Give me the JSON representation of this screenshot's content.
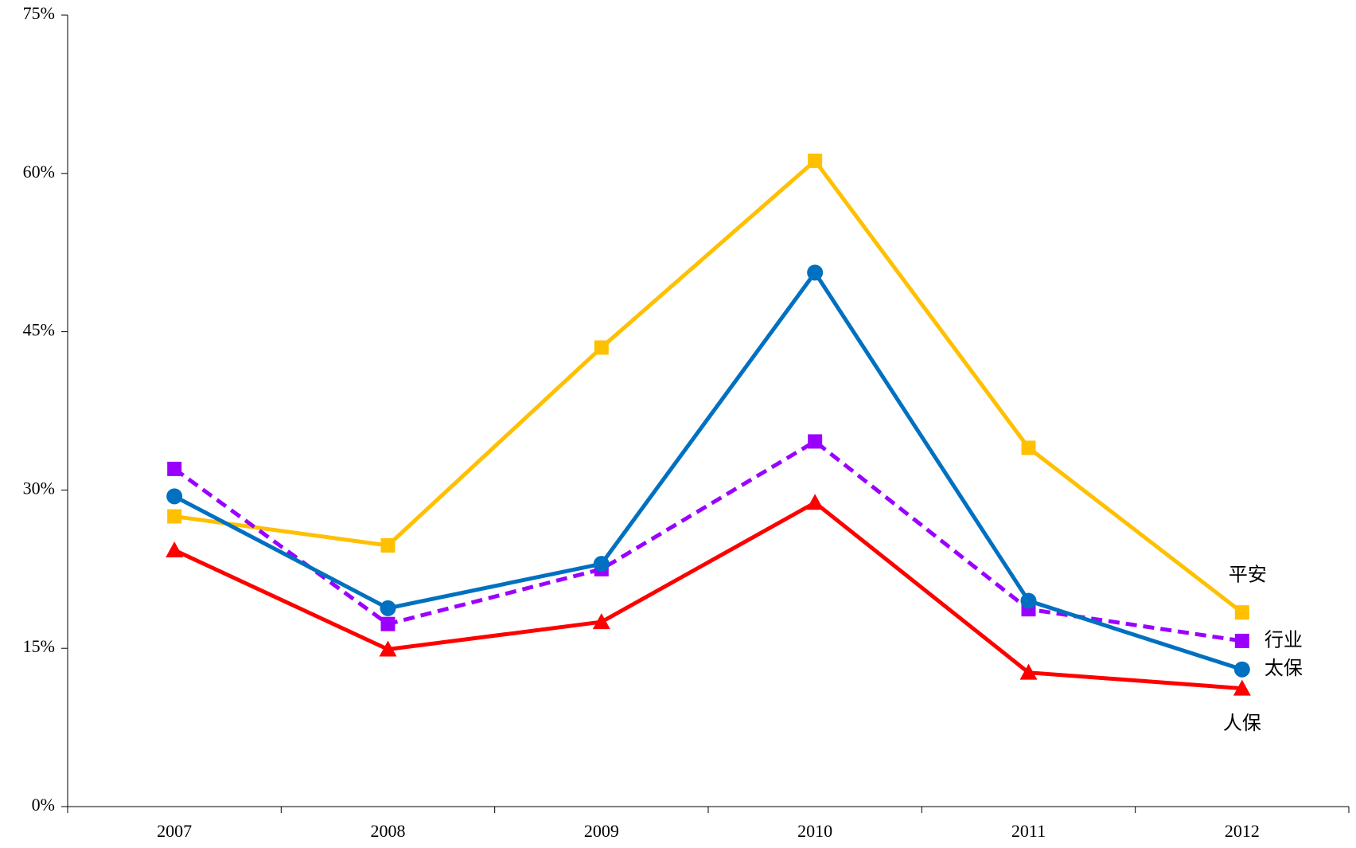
{
  "chart_data": {
    "type": "line",
    "categories": [
      "2007",
      "2008",
      "2009",
      "2010",
      "2011",
      "2012"
    ],
    "series": [
      {
        "name": "平安",
        "color": "#ffc000",
        "marker": "square",
        "dashed": false,
        "values": [
          27.5,
          24.75,
          43.5,
          61.2,
          34.0,
          18.4
        ]
      },
      {
        "name": "行业",
        "color": "#9b00ff",
        "marker": "square",
        "dashed": true,
        "values": [
          32.0,
          17.3,
          22.5,
          34.6,
          18.7,
          15.7
        ]
      },
      {
        "name": "太保",
        "color": "#0070c0",
        "marker": "circle",
        "dashed": false,
        "values": [
          29.4,
          18.8,
          23.0,
          50.6,
          19.5,
          13.0
        ]
      },
      {
        "name": "人保",
        "color": "#ff0000",
        "marker": "triangle",
        "dashed": false,
        "values": [
          24.3,
          14.9,
          17.5,
          28.8,
          12.7,
          11.2
        ]
      }
    ],
    "ylim": [
      0,
      75
    ],
    "yticks": [
      {
        "value": 0,
        "label": "0%"
      },
      {
        "value": 15,
        "label": "15%"
      },
      {
        "value": 30,
        "label": "30%"
      },
      {
        "value": 45,
        "label": "45%"
      },
      {
        "value": 60,
        "label": "60%"
      },
      {
        "value": 75,
        "label": "75%"
      }
    ],
    "grid": false
  }
}
